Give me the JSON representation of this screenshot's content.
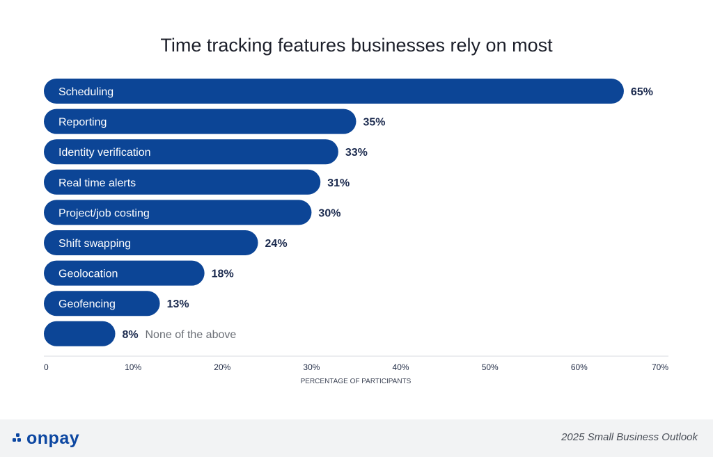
{
  "chart_data": {
    "type": "bar",
    "orientation": "horizontal",
    "title": "Time tracking features businesses rely on most",
    "xlabel": "PERCENTAGE OF PARTICIPANTS",
    "ylabel": "",
    "xlim": [
      0,
      70
    ],
    "x_ticks": [
      "0",
      "10%",
      "20%",
      "30%",
      "40%",
      "50%",
      "60%",
      "70%"
    ],
    "categories": [
      "Scheduling",
      "Reporting",
      "Identity verification",
      "Real time alerts",
      "Project/job costing",
      "Shift swapping",
      "Geolocation",
      "Geofencing",
      "None of the above"
    ],
    "values": [
      65,
      35,
      33,
      31,
      30,
      24,
      18,
      13,
      8
    ],
    "value_labels": [
      "65%",
      "35%",
      "33%",
      "31%",
      "30%",
      "24%",
      "18%",
      "13%",
      "8%"
    ],
    "bar_color": "#0c4596",
    "grid": false
  },
  "footer": {
    "brand": "onpay",
    "caption": "2025 Small Business Outlook"
  }
}
